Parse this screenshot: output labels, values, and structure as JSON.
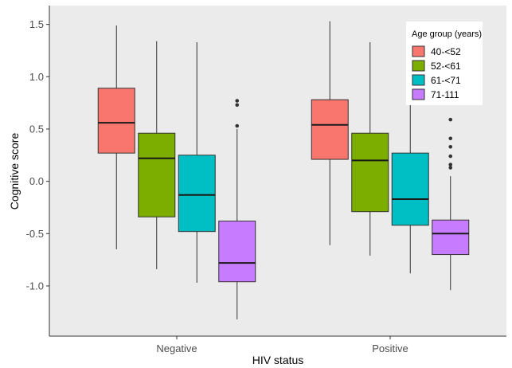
{
  "chart_data": {
    "type": "box",
    "xlabel": "HIV status",
    "ylabel": "Cognitive score",
    "ylim": [
      -1.48,
      1.68
    ],
    "yticks": [
      "1.5",
      "1.0",
      "0.5",
      "0.0",
      "-0.5",
      "-1.0"
    ],
    "ytick_values": [
      1.5,
      1.0,
      0.5,
      0.0,
      -0.5,
      -1.0
    ],
    "categories": [
      "Negative",
      "Positive"
    ],
    "legend": {
      "title": "Age group (years)",
      "position": "top-right"
    },
    "grid": false,
    "background": "#ebebeb",
    "series": [
      {
        "name": "40-<52",
        "color": "#f8766d",
        "boxes": [
          {
            "whisker_low": -0.65,
            "q1": 0.27,
            "median": 0.56,
            "q3": 0.89,
            "whisker_high": 1.49,
            "outliers": []
          },
          {
            "whisker_low": -0.61,
            "q1": 0.21,
            "median": 0.54,
            "q3": 0.78,
            "whisker_high": 1.53,
            "outliers": []
          }
        ]
      },
      {
        "name": "52-<61",
        "color": "#7cae00",
        "boxes": [
          {
            "whisker_low": -0.84,
            "q1": -0.34,
            "median": 0.22,
            "q3": 0.46,
            "whisker_high": 1.34,
            "outliers": []
          },
          {
            "whisker_low": -0.71,
            "q1": -0.29,
            "median": 0.2,
            "q3": 0.46,
            "whisker_high": 1.33,
            "outliers": []
          }
        ]
      },
      {
        "name": "61-<71",
        "color": "#00bfc4",
        "boxes": [
          {
            "whisker_low": -0.97,
            "q1": -0.48,
            "median": -0.13,
            "q3": 0.25,
            "whisker_high": 1.33,
            "outliers": []
          },
          {
            "whisker_low": -0.88,
            "q1": -0.42,
            "median": -0.17,
            "q3": 0.27,
            "whisker_high": 0.76,
            "outliers": []
          }
        ]
      },
      {
        "name": "71-111",
        "color": "#c77cff",
        "boxes": [
          {
            "whisker_low": -1.32,
            "q1": -0.96,
            "median": -0.78,
            "q3": -0.38,
            "whisker_high": 0.5,
            "outliers": [
              0.53,
              0.73,
              0.77
            ]
          },
          {
            "whisker_low": -1.04,
            "q1": -0.7,
            "median": -0.5,
            "q3": -0.37,
            "whisker_high": 0.05,
            "outliers": [
              0.13,
              0.16,
              0.24,
              0.33,
              0.41,
              0.59
            ]
          }
        ]
      }
    ]
  }
}
